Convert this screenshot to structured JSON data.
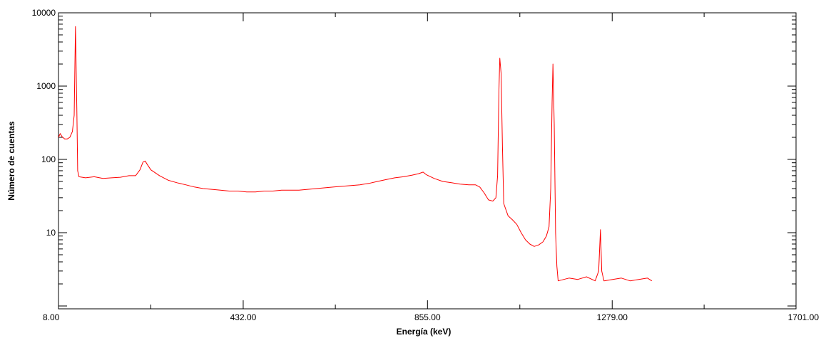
{
  "chart_data": {
    "type": "line",
    "xlabel": "Energía (keV)",
    "ylabel": "Número de cuentas",
    "xlim": [
      8.0,
      1701.0
    ],
    "ylim": [
      1,
      10000
    ],
    "yscale": "log",
    "x_ticks": [
      "8.00",
      "432.00",
      "855.00",
      "1279.00",
      "1701.00"
    ],
    "y_ticks": [
      "10",
      "100",
      "1000",
      "10000"
    ],
    "grid": false,
    "legend": "none",
    "series": [
      {
        "color": "#ff0000",
        "points": [
          [
            8,
            200
          ],
          [
            12,
            225
          ],
          [
            16,
            205
          ],
          [
            22,
            190
          ],
          [
            28,
            190
          ],
          [
            34,
            200
          ],
          [
            40,
            240
          ],
          [
            44,
            400
          ],
          [
            47,
            6500
          ],
          [
            50,
            500
          ],
          [
            52,
            70
          ],
          [
            55,
            58
          ],
          [
            70,
            56
          ],
          [
            90,
            58
          ],
          [
            110,
            55
          ],
          [
            130,
            56
          ],
          [
            150,
            57
          ],
          [
            170,
            60
          ],
          [
            185,
            60
          ],
          [
            195,
            72
          ],
          [
            202,
            92
          ],
          [
            207,
            95
          ],
          [
            212,
            85
          ],
          [
            220,
            72
          ],
          [
            240,
            60
          ],
          [
            260,
            52
          ],
          [
            280,
            48
          ],
          [
            300,
            45
          ],
          [
            320,
            42
          ],
          [
            340,
            40
          ],
          [
            360,
            39
          ],
          [
            380,
            38
          ],
          [
            400,
            37
          ],
          [
            420,
            37
          ],
          [
            440,
            36
          ],
          [
            460,
            36
          ],
          [
            480,
            37
          ],
          [
            500,
            37
          ],
          [
            520,
            38
          ],
          [
            540,
            38
          ],
          [
            560,
            38
          ],
          [
            580,
            39
          ],
          [
            600,
            40
          ],
          [
            620,
            41
          ],
          [
            640,
            42
          ],
          [
            660,
            43
          ],
          [
            680,
            44
          ],
          [
            700,
            45
          ],
          [
            720,
            47
          ],
          [
            740,
            50
          ],
          [
            760,
            53
          ],
          [
            780,
            56
          ],
          [
            800,
            58
          ],
          [
            820,
            61
          ],
          [
            835,
            64
          ],
          [
            845,
            67
          ],
          [
            852,
            62
          ],
          [
            870,
            55
          ],
          [
            890,
            50
          ],
          [
            910,
            48
          ],
          [
            930,
            46
          ],
          [
            950,
            45
          ],
          [
            965,
            45
          ],
          [
            975,
            42
          ],
          [
            985,
            35
          ],
          [
            995,
            28
          ],
          [
            1005,
            27
          ],
          [
            1012,
            30
          ],
          [
            1016,
            60
          ],
          [
            1019,
            900
          ],
          [
            1021,
            2400
          ],
          [
            1024,
            1500
          ],
          [
            1027,
            150
          ],
          [
            1030,
            25
          ],
          [
            1040,
            17
          ],
          [
            1050,
            15
          ],
          [
            1060,
            13
          ],
          [
            1070,
            10
          ],
          [
            1080,
            8
          ],
          [
            1090,
            7
          ],
          [
            1100,
            6.5
          ],
          [
            1110,
            6.8
          ],
          [
            1120,
            7.5
          ],
          [
            1128,
            9
          ],
          [
            1134,
            12
          ],
          [
            1138,
            40
          ],
          [
            1141,
            600
          ],
          [
            1143,
            2000
          ],
          [
            1146,
            300
          ],
          [
            1149,
            10
          ],
          [
            1152,
            3.5
          ],
          [
            1155,
            2.2
          ],
          [
            1180,
            2.4
          ],
          [
            1200,
            2.3
          ],
          [
            1220,
            2.5
          ],
          [
            1240,
            2.2
          ],
          [
            1248,
            3
          ],
          [
            1252,
            11
          ],
          [
            1255,
            3
          ],
          [
            1260,
            2.2
          ],
          [
            1280,
            2.3
          ],
          [
            1300,
            2.4
          ],
          [
            1320,
            2.2
          ],
          [
            1340,
            2.3
          ],
          [
            1360,
            2.4
          ],
          [
            1370,
            2.2
          ]
        ]
      }
    ]
  }
}
